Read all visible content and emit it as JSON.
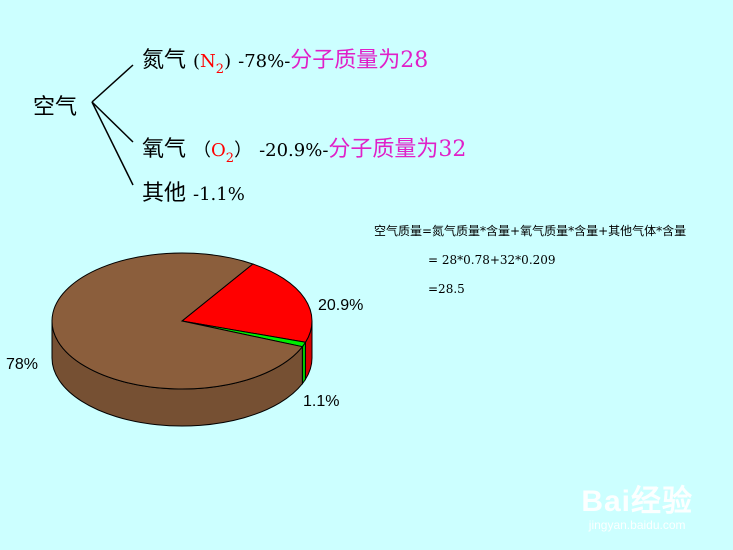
{
  "tree": {
    "root": "空气",
    "n2": {
      "name": "氮气",
      "open": "(",
      "el": "N",
      "sub": "2",
      "close": ")",
      "pct": "-78%-",
      "mass": "分子质量为28"
    },
    "o2": {
      "name": "氧气",
      "open": "（",
      "el": "O",
      "sub": "2",
      "close": "）",
      "pct": "-20.9%-",
      "mass": "分子质量为32"
    },
    "other": {
      "name": "其他",
      "pct": "-1.1%"
    }
  },
  "formula": {
    "line1": "空气质量=氮气质量*含量+氧气质量*含量+其他气体*含量",
    "line2": "= 28*0.78+32*0.209",
    "line3": "=28.5"
  },
  "chart_data": {
    "type": "pie",
    "style": "3d",
    "slices": [
      {
        "label": "78%",
        "value": 78,
        "color": "#8b5e3c"
      },
      {
        "label": "20.9%",
        "value": 20.9,
        "color": "#ff0000"
      },
      {
        "label": "1.1%",
        "value": 1.1,
        "color": "#00ee00"
      }
    ]
  },
  "watermark": {
    "logo": "Bai经验",
    "url": "jingyan.baidu.com"
  }
}
